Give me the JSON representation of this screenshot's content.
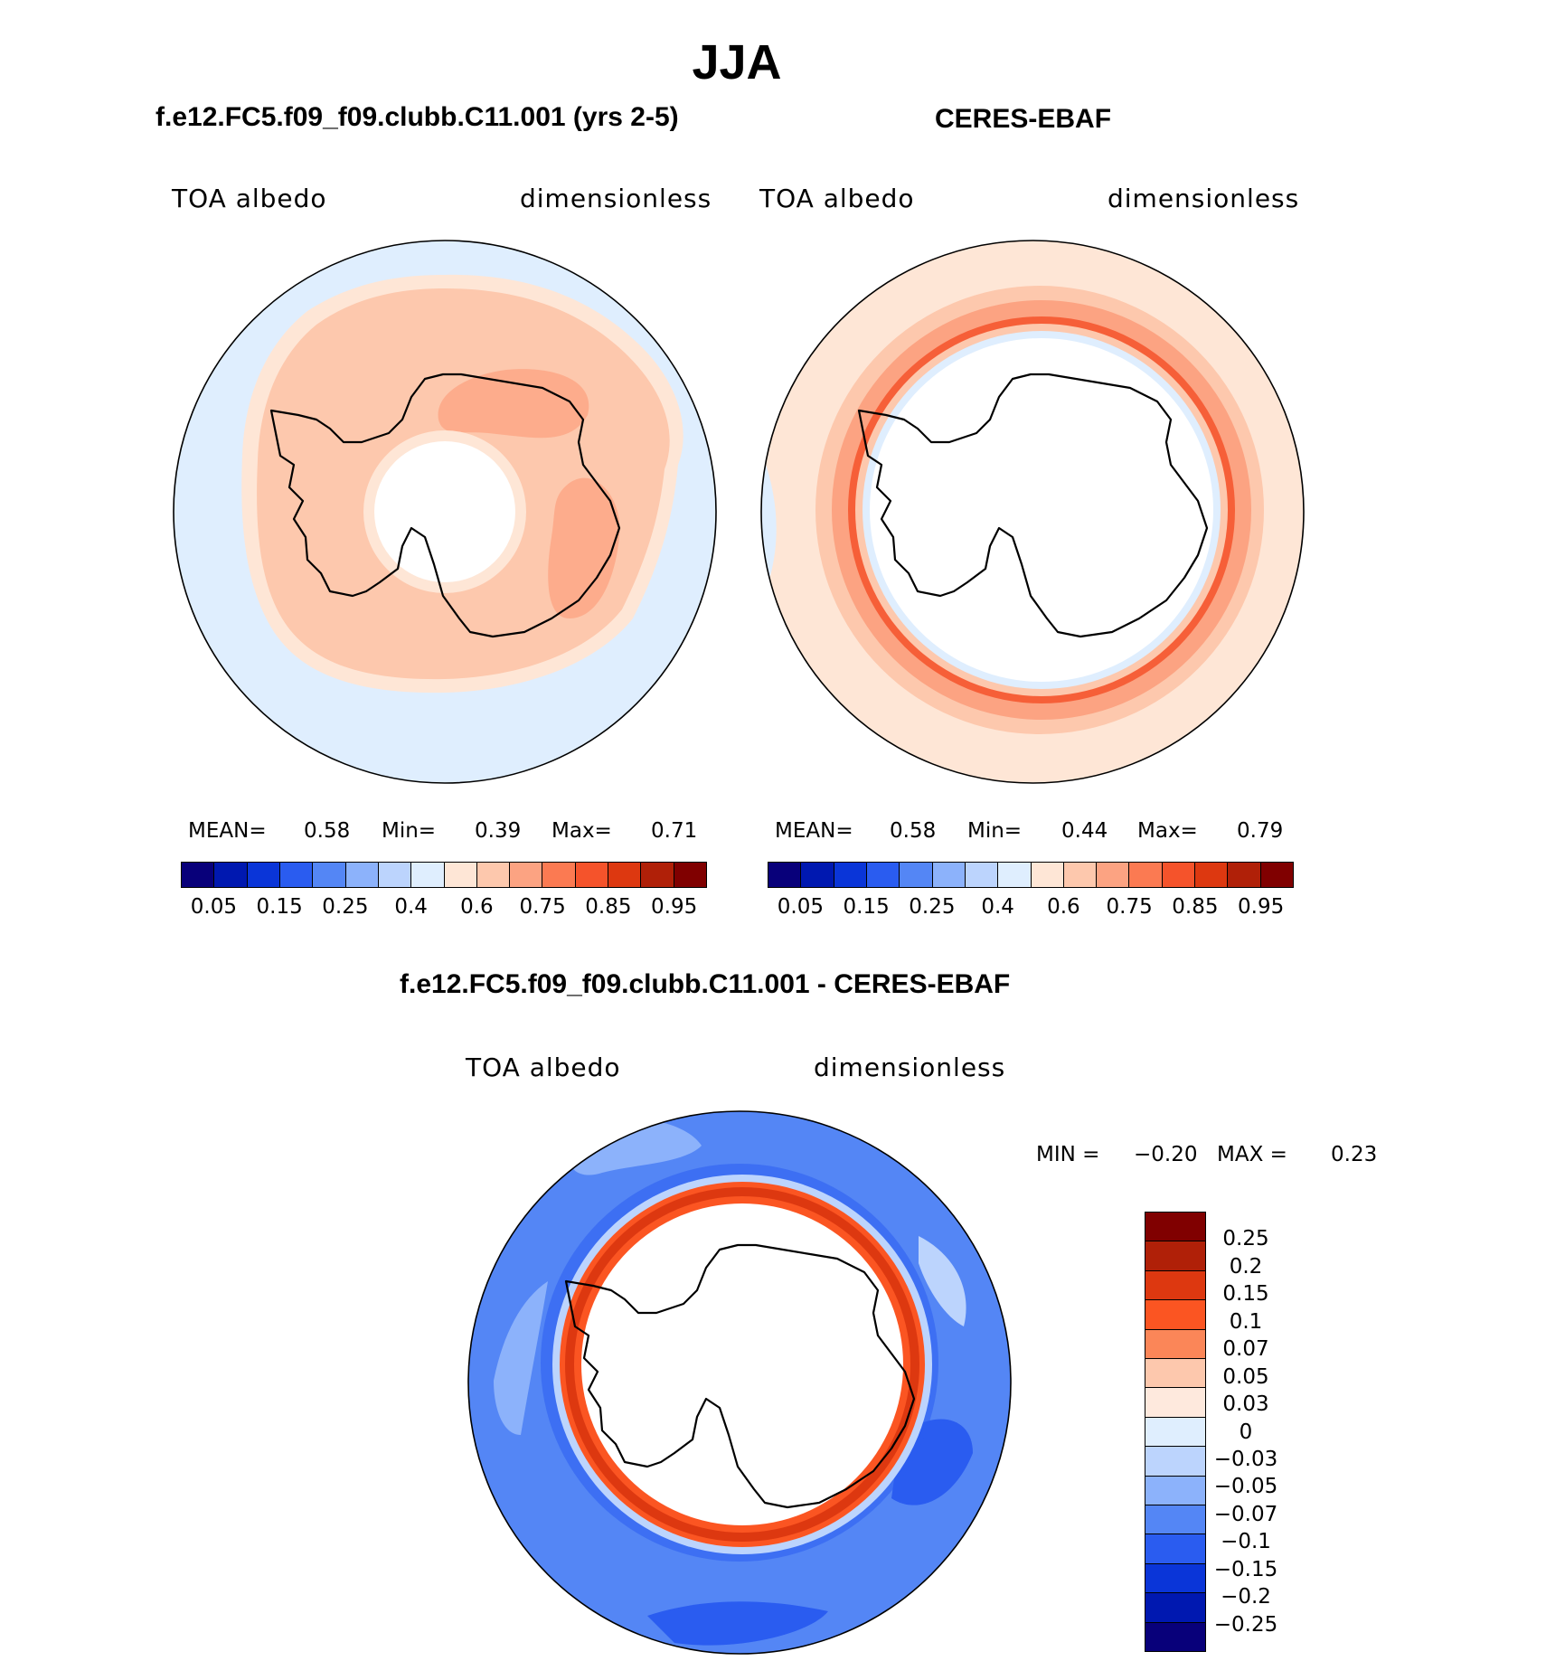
{
  "figure": {
    "season": "JJA",
    "colors": {
      "coastline": "#000000",
      "seq_palette": [
        "#08007a",
        "#0018b0",
        "#0a35d8",
        "#2a5cf0",
        "#5486f5",
        "#8cb2fb",
        "#bcd4fd",
        "#dfeefe",
        "#fee6d6",
        "#fdc8ad",
        "#fca382",
        "#fb7a52",
        "#f5532b",
        "#dd3810",
        "#b02008",
        "#800000"
      ],
      "div_palette": [
        "#800000",
        "#b02008",
        "#dd3810",
        "#fb5522",
        "#fb8658",
        "#fdc8ad",
        "#fee9dd",
        "#dfeefe",
        "#bcd4fd",
        "#8cb2fb",
        "#5486f5",
        "#2a5cf0",
        "#0a35d8",
        "#0018b0",
        "#08007a"
      ]
    }
  },
  "panels": {
    "model": {
      "title": "f.e12.FC5.f09_f09.clubb.C11.001 (yrs 2-5)",
      "variable": "TOA albedo",
      "units": "dimensionless",
      "stats": {
        "mean_label": "MEAN=",
        "mean": "0.58",
        "min_label": "Min=",
        "min": "0.39",
        "max_label": "Max=",
        "max": "0.71"
      }
    },
    "obs": {
      "title": "CERES-EBAF",
      "variable": "TOA albedo",
      "units": "dimensionless",
      "stats": {
        "mean_label": "MEAN=",
        "mean": "0.58",
        "min_label": "Min=",
        "min": "0.44",
        "max_label": "Max=",
        "max": "0.79"
      }
    },
    "diff": {
      "title": "f.e12.FC5.f09_f09.clubb.C11.001 - CERES-EBAF",
      "variable": "TOA albedo",
      "units": "dimensionless",
      "stats": {
        "min_label": "MIN =",
        "min": "−0.20",
        "max_label": "MAX =",
        "max": "0.23"
      }
    }
  },
  "colorbar_seq": {
    "labels": [
      "0.05",
      "0.15",
      "0.25",
      "0.4",
      "0.6",
      "0.75",
      "0.85",
      "0.95"
    ]
  },
  "colorbar_div": {
    "labels": [
      "0.25",
      "0.2",
      "0.15",
      "0.1",
      "0.07",
      "0.05",
      "0.03",
      "0",
      "−0.03",
      "−0.05",
      "−0.07",
      "−0.1",
      "−0.15",
      "−0.2",
      "−0.25"
    ]
  },
  "chart_data": [
    {
      "type": "heatmap",
      "title": "f.e12.FC5.f09_f09.clubb.C11.001 (yrs 2-5)",
      "variable": "TOA albedo",
      "units": "dimensionless",
      "projection": "south polar stereographic",
      "mean": 0.58,
      "min": 0.39,
      "max": 0.71,
      "levels": [
        0.05,
        0.1,
        0.15,
        0.2,
        0.25,
        0.3,
        0.4,
        0.5,
        0.6,
        0.7,
        0.75,
        0.8,
        0.85,
        0.9,
        0.95
      ]
    },
    {
      "type": "heatmap",
      "title": "CERES-EBAF",
      "variable": "TOA albedo",
      "units": "dimensionless",
      "projection": "south polar stereographic",
      "mean": 0.58,
      "min": 0.44,
      "max": 0.79,
      "levels": [
        0.05,
        0.1,
        0.15,
        0.2,
        0.25,
        0.3,
        0.4,
        0.5,
        0.6,
        0.7,
        0.75,
        0.8,
        0.85,
        0.9,
        0.95
      ]
    },
    {
      "type": "heatmap",
      "title": "f.e12.FC5.f09_f09.clubb.C11.001 - CERES-EBAF",
      "variable": "TOA albedo",
      "units": "dimensionless",
      "projection": "south polar stereographic",
      "min": -0.2,
      "max": 0.23,
      "levels": [
        0.25,
        0.2,
        0.15,
        0.1,
        0.07,
        0.05,
        0.03,
        0,
        -0.03,
        -0.05,
        -0.07,
        -0.1,
        -0.15,
        -0.2,
        -0.25
      ]
    }
  ]
}
